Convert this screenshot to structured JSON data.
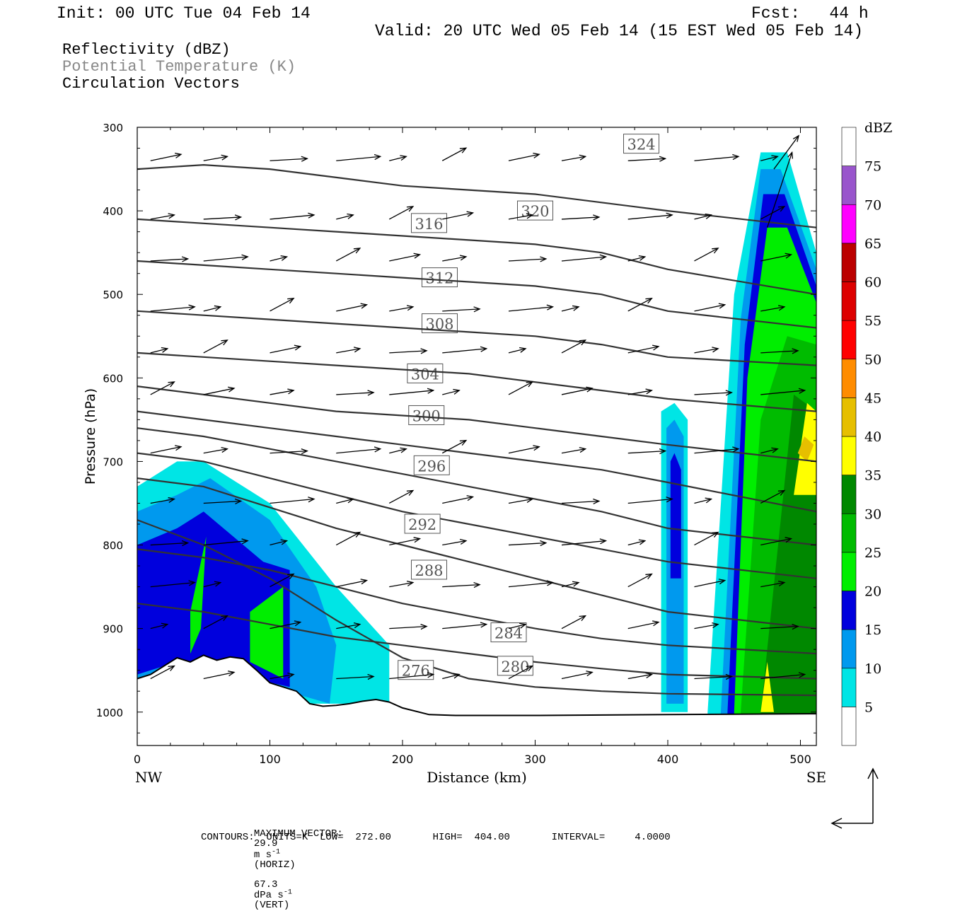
{
  "header": {
    "init": "Init: 00 UTC Tue 04 Feb 14",
    "fcst": "Fcst:   44 h",
    "valid": "Valid: 20 UTC Wed 05 Feb 14 (15 EST Wed 05 Feb 14)"
  },
  "fields": {
    "reflectivity": "Reflectivity (dBZ)",
    "theta": "Potential Temperature (K)",
    "vectors": "Circulation Vectors"
  },
  "colors": {
    "theta_label": "#888888",
    "contour": "#333333",
    "terrain": "#000000"
  },
  "footer": {
    "max_vector_label": "MAXIMUM VECTOR:",
    "horiz_value": "29.9",
    "horiz_unit_base": "m s",
    "horiz_unit_exp": "-1",
    "horiz_tag": "(HORIZ)",
    "vert_value": "67.3",
    "vert_unit_base": "dPa s",
    "vert_unit_exp": "-1",
    "vert_tag": "(VERT)",
    "contours_line": "CONTOURS:  UNITS=K  LOW=  272.00       HIGH=  404.00       INTERVAL=     4.0000"
  },
  "chart_data": {
    "type": "cross-section",
    "xlabel": "Distance (km)",
    "ylabel": "Pressure (hPa)",
    "xlim": [
      0,
      512
    ],
    "ylim": [
      1040,
      300
    ],
    "y_log": false,
    "x_ticks": [
      "0",
      "100",
      "200",
      "300",
      "400",
      "500"
    ],
    "x_tick_values": [
      0,
      100,
      200,
      300,
      400,
      500
    ],
    "y_ticks": [
      "300",
      "400",
      "500",
      "600",
      "700",
      "800",
      "900",
      "1000"
    ],
    "y_tick_values": [
      300,
      400,
      500,
      600,
      700,
      800,
      900,
      1000
    ],
    "x_end_labels": {
      "left": "NW",
      "right": "SE"
    },
    "colorbar": {
      "title": "dBZ",
      "levels": [
        "5",
        "10",
        "15",
        "20",
        "25",
        "30",
        "35",
        "40",
        "45",
        "50",
        "55",
        "60",
        "65",
        "70",
        "75"
      ],
      "colors": [
        "#ffffff",
        "#00e5e5",
        "#0099ee",
        "#0000dd",
        "#00ee00",
        "#00bb00",
        "#008800",
        "#ffff00",
        "#e6bf00",
        "#ff8c00",
        "#ff0000",
        "#dd0000",
        "#bb0000",
        "#ff00ff",
        "#9955cc",
        "#ffffff"
      ]
    },
    "terrain": {
      "distance_km": [
        0,
        10,
        20,
        30,
        40,
        50,
        60,
        70,
        80,
        90,
        100,
        110,
        120,
        130,
        140,
        150,
        160,
        170,
        180,
        190,
        200,
        220,
        240,
        300,
        400,
        512
      ],
      "pressure_hpa": [
        960,
        955,
        945,
        935,
        940,
        932,
        938,
        934,
        936,
        950,
        965,
        970,
        975,
        990,
        993,
        992,
        990,
        987,
        985,
        988,
        995,
        1003,
        1004,
        1004,
        1003,
        1002
      ]
    },
    "theta_contours": [
      {
        "level": "276",
        "x": [
          0,
          50,
          100,
          150,
          200,
          250,
          300,
          350,
          400,
          512
        ],
        "p": [
          770,
          800,
          840,
          890,
          935,
          960,
          970,
          975,
          978,
          980
        ],
        "label_at": [
          210,
          950
        ]
      },
      {
        "level": "280",
        "x": [
          0,
          50,
          100,
          150,
          200,
          250,
          300,
          350,
          400,
          512
        ],
        "p": [
          870,
          880,
          895,
          910,
          920,
          930,
          940,
          948,
          955,
          960
        ],
        "label_at": [
          285,
          945
        ]
      },
      {
        "level": "284",
        "x": [
          0,
          50,
          100,
          150,
          200,
          250,
          300,
          350,
          400,
          512
        ],
        "p": [
          805,
          815,
          830,
          850,
          870,
          885,
          900,
          912,
          920,
          930
        ],
        "label_at": [
          280,
          905
        ]
      },
      {
        "level": "288",
        "x": [
          0,
          50,
          100,
          150,
          200,
          250,
          300,
          350,
          400,
          512
        ],
        "p": [
          720,
          730,
          755,
          780,
          800,
          820,
          840,
          860,
          880,
          900
        ],
        "label_at": [
          220,
          830
        ]
      },
      {
        "level": "292",
        "x": [
          0,
          50,
          100,
          150,
          200,
          250,
          300,
          350,
          400,
          512
        ],
        "p": [
          690,
          700,
          720,
          740,
          760,
          775,
          790,
          805,
          820,
          840
        ],
        "label_at": [
          215,
          775
        ]
      },
      {
        "level": "296",
        "x": [
          0,
          50,
          100,
          150,
          200,
          250,
          300,
          350,
          400,
          512
        ],
        "p": [
          660,
          670,
          685,
          700,
          715,
          730,
          745,
          760,
          780,
          800
        ],
        "label_at": [
          222,
          705
        ]
      },
      {
        "level": "300",
        "x": [
          0,
          50,
          100,
          150,
          200,
          250,
          300,
          350,
          400,
          512
        ],
        "p": [
          640,
          650,
          660,
          670,
          680,
          690,
          700,
          710,
          725,
          760
        ],
        "label_at": [
          218,
          645
        ]
      },
      {
        "level": "304",
        "x": [
          0,
          50,
          100,
          150,
          200,
          250,
          300,
          350,
          400,
          512
        ],
        "p": [
          610,
          620,
          630,
          640,
          645,
          650,
          660,
          670,
          680,
          700
        ],
        "label_at": [
          217,
          595
        ]
      },
      {
        "level": "308",
        "x": [
          0,
          50,
          100,
          150,
          200,
          250,
          300,
          350,
          400,
          512
        ],
        "p": [
          570,
          575,
          580,
          585,
          590,
          595,
          605,
          615,
          625,
          640
        ],
        "label_at": [
          228,
          535
        ]
      },
      {
        "level": "312",
        "x": [
          0,
          50,
          100,
          150,
          200,
          250,
          300,
          350,
          400,
          512
        ],
        "p": [
          520,
          525,
          530,
          535,
          540,
          545,
          550,
          560,
          575,
          585
        ],
        "label_at": [
          228,
          480
        ]
      },
      {
        "level": "316",
        "x": [
          0,
          50,
          100,
          150,
          200,
          250,
          300,
          350,
          400,
          512
        ],
        "p": [
          460,
          465,
          470,
          475,
          480,
          485,
          490,
          500,
          520,
          540
        ],
        "label_at": [
          220,
          415
        ]
      },
      {
        "level": "320",
        "x": [
          0,
          50,
          100,
          150,
          200,
          250,
          300,
          350,
          400,
          512
        ],
        "p": [
          410,
          415,
          420,
          425,
          430,
          435,
          440,
          450,
          470,
          500
        ],
        "label_at": [
          300,
          400
        ]
      },
      {
        "level": "324",
        "x": [
          0,
          50,
          100,
          150,
          200,
          250,
          300,
          350,
          400,
          512
        ],
        "p": [
          350,
          345,
          350,
          360,
          370,
          375,
          380,
          390,
          400,
          420
        ],
        "label_at": [
          380,
          320
        ]
      }
    ],
    "reflectivity_regions": [
      {
        "dbz": "5",
        "x": [
          0,
          30,
          50,
          100,
          150,
          190,
          190,
          130,
          60,
          0
        ],
        "p": [
          730,
          700,
          700,
          750,
          850,
          920,
          990,
          990,
          940,
          960
        ]
      },
      {
        "dbz": "10",
        "x": [
          0,
          30,
          55,
          100,
          135,
          150,
          145,
          80,
          40,
          0
        ],
        "p": [
          760,
          740,
          720,
          770,
          850,
          920,
          990,
          960,
          940,
          960
        ]
      },
      {
        "dbz": "15",
        "x": [
          0,
          30,
          50,
          95,
          115,
          115,
          60,
          20,
          0
        ],
        "p": [
          800,
          780,
          760,
          820,
          830,
          970,
          950,
          945,
          955
        ]
      },
      {
        "dbz": "20",
        "x": [
          40,
          52,
          48,
          40
        ],
        "p": [
          880,
          790,
          900,
          930
        ]
      },
      {
        "dbz": "20",
        "x": [
          85,
          110,
          110,
          85
        ],
        "p": [
          880,
          850,
          960,
          940
        ]
      },
      {
        "dbz": "5",
        "x": [
          395,
          405,
          415,
          415,
          395
        ],
        "p": [
          640,
          630,
          650,
          1000,
          1000
        ]
      },
      {
        "dbz": "10",
        "x": [
          399,
          405,
          412,
          412,
          399
        ],
        "p": [
          660,
          650,
          670,
          990,
          990
        ]
      },
      {
        "dbz": "15",
        "x": [
          402,
          405,
          410,
          410,
          402
        ],
        "p": [
          700,
          690,
          710,
          840,
          840
        ]
      },
      {
        "dbz": "5",
        "x": [
          430,
          450,
          470,
          490,
          512,
          512,
          430
        ],
        "p": [
          1000,
          500,
          330,
          330,
          450,
          1002,
          1002
        ]
      },
      {
        "dbz": "10",
        "x": [
          440,
          455,
          470,
          485,
          512,
          512,
          440
        ],
        "p": [
          1000,
          530,
          350,
          350,
          470,
          1002,
          1002
        ]
      },
      {
        "dbz": "15",
        "x": [
          445,
          458,
          472,
          488,
          512,
          512,
          445
        ],
        "p": [
          1000,
          560,
          380,
          380,
          490,
          1002,
          1002
        ]
      },
      {
        "dbz": "20",
        "x": [
          450,
          460,
          475,
          490,
          512,
          512,
          450
        ],
        "p": [
          1000,
          600,
          420,
          420,
          510,
          1002,
          1002
        ]
      },
      {
        "dbz": "25",
        "x": [
          455,
          470,
          490,
          512,
          512,
          455
        ],
        "p": [
          1000,
          650,
          550,
          560,
          1002,
          1002
        ]
      },
      {
        "dbz": "30",
        "x": [
          470,
          495,
          512,
          512,
          470
        ],
        "p": [
          1000,
          620,
          640,
          1002,
          1002
        ]
      },
      {
        "dbz": "35",
        "x": [
          495,
          505,
          512,
          512,
          495
        ],
        "p": [
          740,
          630,
          640,
          740,
          740
        ]
      },
      {
        "dbz": "40",
        "x": [
          498,
          503,
          510,
          505
        ],
        "p": [
          690,
          670,
          680,
          700
        ]
      },
      {
        "dbz": "35",
        "x": [
          470,
          475,
          480,
          470
        ],
        "p": [
          1000,
          940,
          1000,
          1000
        ]
      }
    ],
    "vectors": {
      "x": [
        10,
        50,
        100,
        150,
        190,
        230,
        280,
        320,
        370,
        420,
        470
      ],
      "p": [
        340,
        410,
        460,
        520,
        570,
        620,
        690,
        750,
        800,
        850,
        900,
        960
      ],
      "u": 8,
      "w": 1
    },
    "vector_field": [
      [
        8,
        1.5
      ],
      [
        6,
        1
      ],
      [
        10,
        0.5
      ],
      [
        12,
        1
      ],
      [
        4,
        1
      ],
      [
        6,
        3
      ]
    ],
    "max_vector_arrows": [
      {
        "x": 475,
        "p0": 420,
        "p1": 330
      },
      {
        "x": 480,
        "p0": 350,
        "p1": 310
      }
    ]
  }
}
